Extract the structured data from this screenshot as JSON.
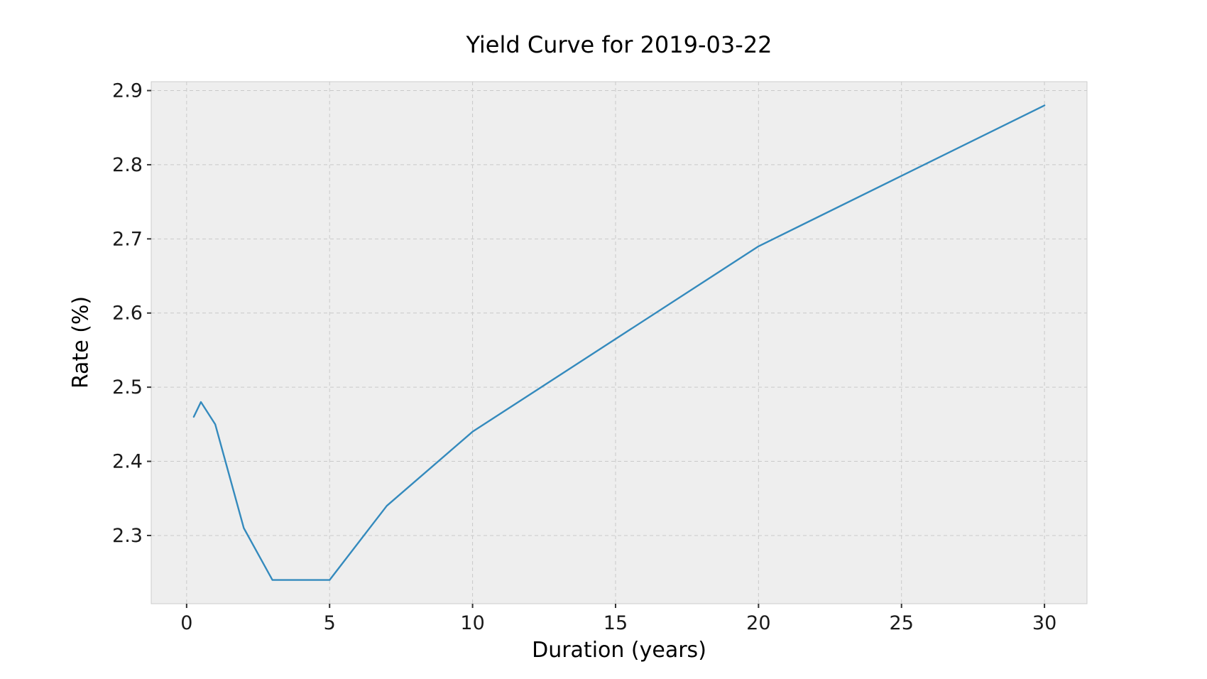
{
  "chart_data": {
    "type": "line",
    "title": "Yield Curve for 2019-03-22",
    "xlabel": "Duration (years)",
    "ylabel": "Rate (%)",
    "series": [
      {
        "name": "yield-curve-2019-03-22",
        "x": [
          0.25,
          0.5,
          1,
          2,
          3,
          5,
          7,
          10,
          20,
          30
        ],
        "y": [
          2.46,
          2.48,
          2.45,
          2.31,
          2.24,
          2.24,
          2.34,
          2.44,
          2.69,
          2.88
        ]
      }
    ],
    "xlim": [
      -1.2375,
      31.4875
    ],
    "ylim": [
      2.208,
      2.912
    ],
    "xticks": [
      0,
      5,
      10,
      15,
      20,
      25,
      30
    ],
    "xtick_labels": [
      "0",
      "5",
      "10",
      "15",
      "20",
      "25",
      "30"
    ],
    "yticks": [
      2.3,
      2.4,
      2.5,
      2.6,
      2.7,
      2.8,
      2.9
    ],
    "ytick_labels": [
      "2.3",
      "2.4",
      "2.5",
      "2.6",
      "2.7",
      "2.8",
      "2.9"
    ],
    "grid": true,
    "grid_style": "dashed",
    "legend": null,
    "colors": {
      "line": "#348ABD",
      "plot_background": "#eeeeee",
      "figure_background": "#ffffff",
      "grid": "#c9c9c9",
      "axis_edge": "#cccccc",
      "tick_mark": "#333333",
      "tick_text": "#1a1a1a",
      "title_text": "#000000"
    }
  }
}
